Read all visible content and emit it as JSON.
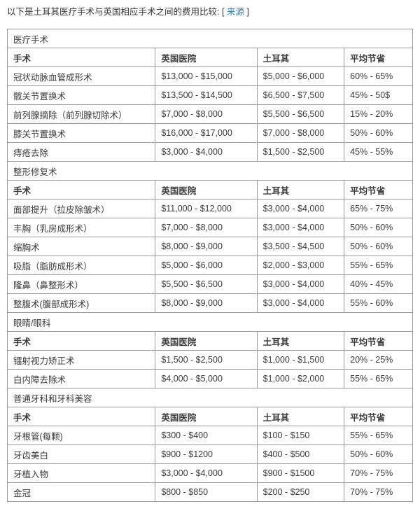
{
  "intro": {
    "text_before": "以下是土耳其医疗手术与英国相应手术之间的费用比较: [ ",
    "link_label": "来源",
    "text_after": " ]"
  },
  "table": {
    "columns": [
      "手术",
      "英国医院",
      "土耳其",
      "平均节省"
    ],
    "sections": [
      {
        "title": "医疗手术",
        "rows": [
          [
            "冠状动脉血管成形术",
            "$13,000 - $15,000",
            "$5,000 - $6,000",
            "60% - 65%"
          ],
          [
            "髋关节置换术",
            "$13,500 - $14,500",
            "$6,500 - $7,500",
            "45% - 50$"
          ],
          [
            "前列腺摘除（前列腺切除术）",
            "$7,000 - $8,000",
            "$5,500 - $6,500",
            "15% - 20%"
          ],
          [
            "膝关节置换术",
            "$16,000 - $17,000",
            "$7,000 - $8,000",
            "50% - 60%"
          ],
          [
            "痔疮去除",
            "$3,000 - $4,000",
            "$1,500 - $2,500",
            "45% - 55%"
          ]
        ]
      },
      {
        "title": "整形修复术",
        "rows": [
          [
            "面部提升（拉皮除皱术）",
            "$11,000 - $12,000",
            "$3,000 - $4,000",
            "65% - 75%"
          ],
          [
            "丰胸（乳房成形术）",
            "$7,000 - $8,000",
            "$3,000 - $4,000",
            "50% - 60%"
          ],
          [
            "缩胸术",
            "$8,000 - $9,000",
            "$3,500 - $4,500",
            "50% - 60%"
          ],
          [
            "吸脂（脂肪成形术）",
            "$5,000 - $6,000",
            "$2,000 - $3,000",
            "55% - 65%"
          ],
          [
            "隆鼻（鼻整形术）",
            "$5,500 - $6,500",
            "$3,000 - $4,000",
            "40% - 45%"
          ],
          [
            "整腹术(腹部成形术)",
            "$8,000 - $9,000",
            "$3,000 - $4,000",
            "55% - 60%"
          ]
        ]
      },
      {
        "title": "眼睛/眼科",
        "rows": [
          [
            "镭射视力矫正术",
            "$1,500 - $2,500",
            "$1,000 - $1,500",
            "20% - 25%"
          ],
          [
            "白内障去除术",
            "$4,000 - $5,000",
            "$1,000 - $2,000",
            "55% - 65%"
          ]
        ]
      },
      {
        "title": "普通牙科和牙科美容",
        "rows": [
          [
            "牙根管(每颗)",
            "$300 - $400",
            "$100 - $150",
            "55% - 65%"
          ],
          [
            "牙齿美白",
            "$900 - $1200",
            "$400 - $500",
            "50% - 60%"
          ],
          [
            "牙植入物",
            "$3,000 - $4,000",
            "$900 - $1500",
            "70% - 75%"
          ],
          [
            "金冠",
            "$800 - $850",
            "$200 - $250",
            "70% - 75%"
          ]
        ]
      }
    ],
    "column_widths_percent": [
      36.5,
      25.1,
      21.5,
      16.9
    ]
  },
  "colors": {
    "link": "#337ab7",
    "border": "#9b9b9b",
    "text": "#3a3a3a"
  }
}
